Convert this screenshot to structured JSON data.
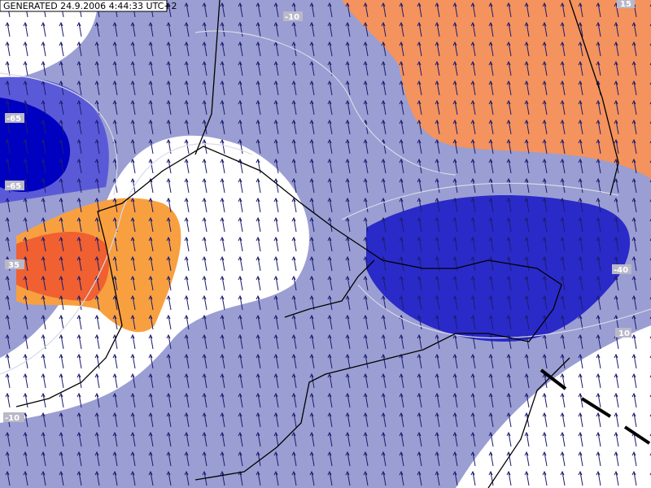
{
  "header": {
    "title": "GENERATED 24.9.2006 4:44:33 UTC+2"
  },
  "contour_labels": [
    "-65",
    "-65",
    "35",
    "-10",
    "15",
    "-10",
    "-40",
    "10"
  ]
}
